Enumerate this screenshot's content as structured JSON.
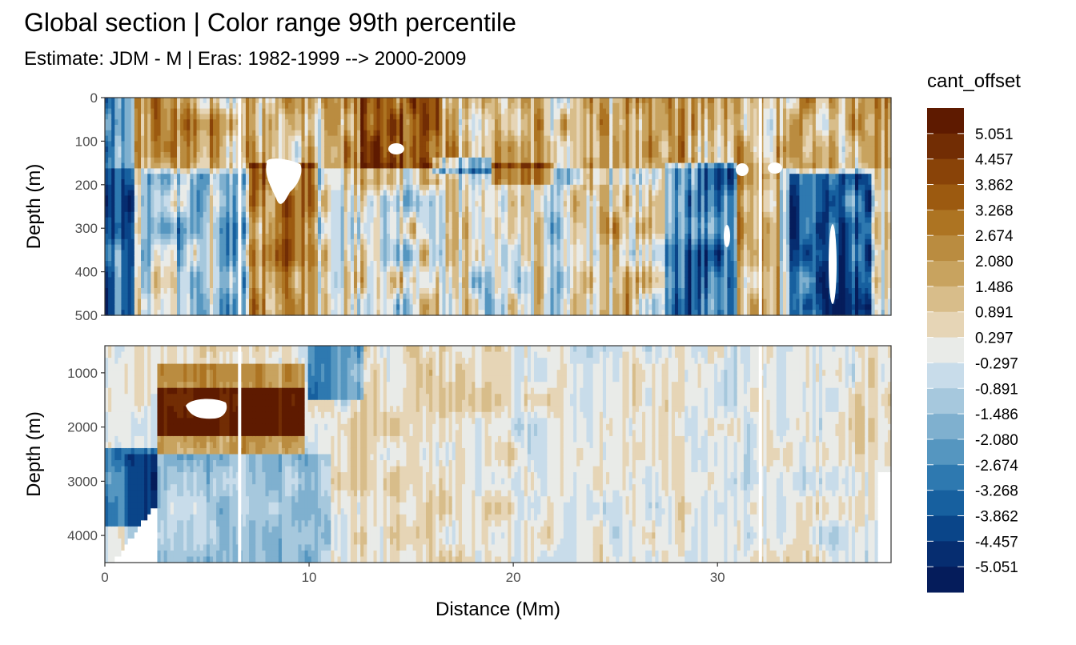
{
  "chart_data": {
    "type": "heatmap",
    "title": "Global section | Color range 99th percentile",
    "subtitle": "Estimate: JDM - M | Eras: 1982-1999 --> 2000-2009",
    "xlabel": "Distance (Mm)",
    "ylabel": "Depth (m)",
    "xlim": [
      0,
      38.5
    ],
    "grid": true,
    "panels": [
      {
        "ylim": [
          0,
          500
        ],
        "ticks": [
          0,
          100,
          200,
          300,
          400,
          500
        ],
        "tick_labels": [
          "0",
          "100",
          "200",
          "300",
          "400",
          "500"
        ]
      },
      {
        "ylim": [
          500,
          4500
        ],
        "ticks": [
          1000,
          2000,
          3000,
          4000
        ],
        "tick_labels": [
          "1000",
          "2000",
          "3000",
          "4000"
        ]
      }
    ],
    "xticks": [
      0,
      10,
      20,
      30
    ],
    "xtick_labels": [
      "0",
      "10",
      "20",
      "30"
    ],
    "legend": {
      "title": "cant_offset",
      "placement": "right",
      "labels": [
        "5.051",
        "4.457",
        "3.862",
        "3.268",
        "2.674",
        "2.080",
        "1.486",
        "0.891",
        "0.297",
        "-0.297",
        "-0.891",
        "-1.486",
        "-2.080",
        "-2.674",
        "-3.268",
        "-3.862",
        "-4.457",
        "-5.051"
      ],
      "colors": [
        "#5e1a00",
        "#722d04",
        "#894308",
        "#9c5a10",
        "#ad7422",
        "#ba8c40",
        "#c8a35f",
        "#d8bd8a",
        "#e6d5b6",
        "#e9ebe8",
        "#c8dcea",
        "#a6c8dd",
        "#7fb0cf",
        "#5596c0",
        "#2e79b0",
        "#17609f",
        "#0a4589",
        "#062d70",
        "#051c5b"
      ]
    },
    "note_gaps_x": [
      6.6,
      32.1
    ]
  }
}
